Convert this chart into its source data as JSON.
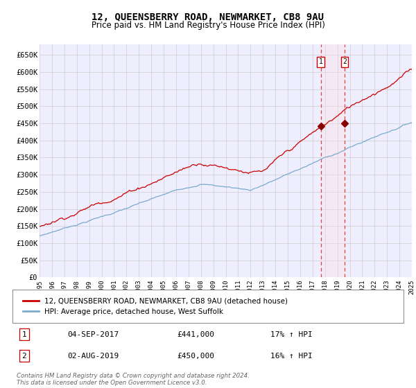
{
  "title": "12, QUEENSBERRY ROAD, NEWMARKET, CB8 9AU",
  "subtitle": "Price paid vs. HM Land Registry's House Price Index (HPI)",
  "title_fontsize": 10,
  "subtitle_fontsize": 8.5,
  "ylabel_ticks": [
    "£0",
    "£50K",
    "£100K",
    "£150K",
    "£200K",
    "£250K",
    "£300K",
    "£350K",
    "£400K",
    "£450K",
    "£500K",
    "£550K",
    "£600K",
    "£650K"
  ],
  "ytick_vals": [
    0,
    50000,
    100000,
    150000,
    200000,
    250000,
    300000,
    350000,
    400000,
    450000,
    500000,
    550000,
    600000,
    650000
  ],
  "ylim": [
    0,
    680000
  ],
  "hpi_color": "#7aabcc",
  "price_color": "#cc0000",
  "marker_color": "#880000",
  "vline_color": "#dd4444",
  "vshade_color": "#ffdddd",
  "grid_color": "#cccccc",
  "bg_color": "#eeeeff",
  "purchase1_date": 2017.67,
  "purchase1_price": 441000,
  "purchase2_date": 2019.58,
  "purchase2_price": 450000,
  "legend_entries": [
    "12, QUEENSBERRY ROAD, NEWMARKET, CB8 9AU (detached house)",
    "HPI: Average price, detached house, West Suffolk"
  ],
  "table_data": [
    [
      "1",
      "04-SEP-2017",
      "£441,000",
      "17% ↑ HPI"
    ],
    [
      "2",
      "02-AUG-2019",
      "£450,000",
      "16% ↑ HPI"
    ]
  ],
  "footnote": "Contains HM Land Registry data © Crown copyright and database right 2024.\nThis data is licensed under the Open Government Licence v3.0.",
  "xstart": 1995,
  "xend": 2025
}
